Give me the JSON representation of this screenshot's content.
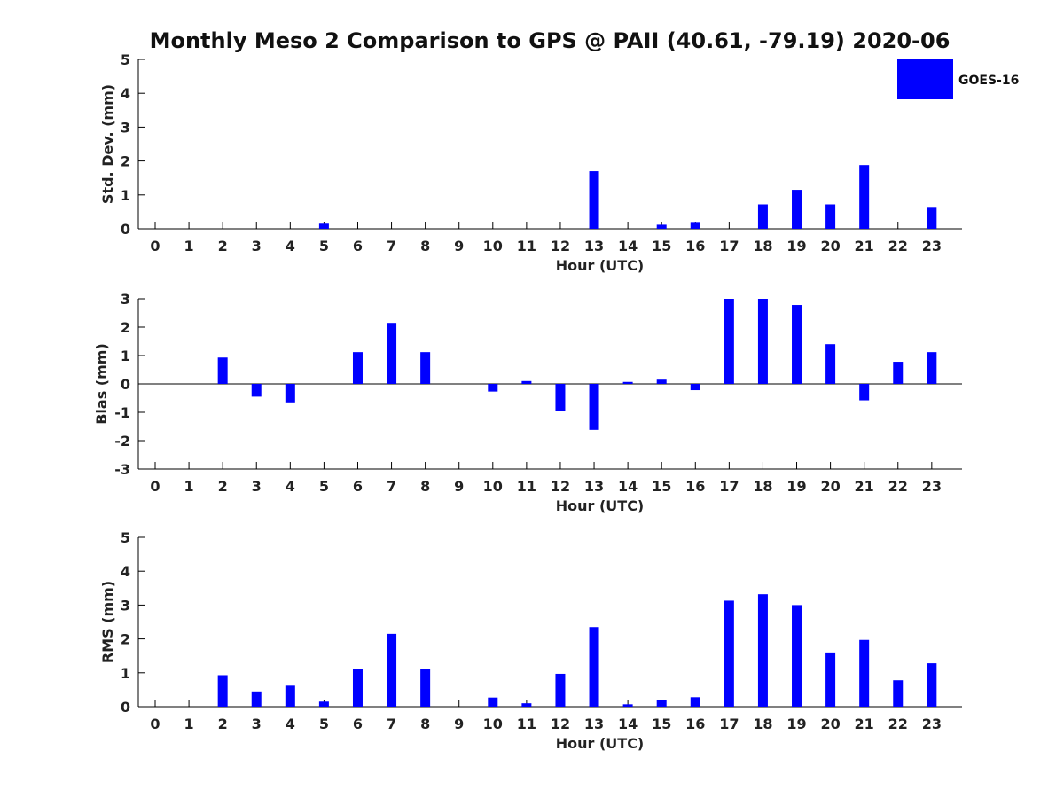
{
  "title": "Monthly Meso 2 Comparison to GPS @ PAII (40.61, -79.19) 2020-06",
  "legend": {
    "label": "GOES-16",
    "placement": "top-right"
  },
  "colors": {
    "bar": "#0000ff"
  },
  "chart_data": [
    {
      "type": "bar",
      "ylabel": "Std. Dev. (mm)",
      "xlabel": "Hour (UTC)",
      "ylim": [
        0,
        5
      ],
      "yticks": [
        0,
        1,
        2,
        3,
        4,
        5
      ],
      "categories": [
        "0",
        "1",
        "2",
        "3",
        "4",
        "5",
        "6",
        "7",
        "8",
        "9",
        "10",
        "11",
        "12",
        "13",
        "14",
        "15",
        "16",
        "17",
        "18",
        "19",
        "20",
        "21",
        "22",
        "23"
      ],
      "series": [
        {
          "name": "GOES-16",
          "values": [
            0,
            0,
            0,
            0,
            0,
            0.15,
            0,
            0,
            0,
            0,
            0,
            0,
            0,
            1.7,
            0,
            0.12,
            0.2,
            0,
            0.72,
            1.15,
            0.72,
            1.88,
            0,
            0.62
          ]
        }
      ]
    },
    {
      "type": "bar",
      "ylabel": "Bias (mm)",
      "xlabel": "Hour (UTC)",
      "ylim": [
        -3,
        3
      ],
      "yticks": [
        -3,
        -2,
        -1,
        0,
        1,
        2,
        3
      ],
      "categories": [
        "0",
        "1",
        "2",
        "3",
        "4",
        "5",
        "6",
        "7",
        "8",
        "9",
        "10",
        "11",
        "12",
        "13",
        "14",
        "15",
        "16",
        "17",
        "18",
        "19",
        "20",
        "21",
        "22",
        "23"
      ],
      "series": [
        {
          "name": "GOES-16",
          "values": [
            0,
            0,
            0.93,
            -0.45,
            -0.65,
            0,
            1.12,
            2.15,
            1.12,
            0,
            -0.27,
            0.1,
            -0.95,
            -1.62,
            0.07,
            0.15,
            -0.22,
            3.0,
            3.0,
            2.78,
            1.4,
            -0.58,
            0.78,
            1.12
          ]
        }
      ]
    },
    {
      "type": "bar",
      "ylabel": "RMS (mm)",
      "xlabel": "Hour (UTC)",
      "ylim": [
        0,
        5
      ],
      "yticks": [
        0,
        1,
        2,
        3,
        4,
        5
      ],
      "categories": [
        "0",
        "1",
        "2",
        "3",
        "4",
        "5",
        "6",
        "7",
        "8",
        "9",
        "10",
        "11",
        "12",
        "13",
        "14",
        "15",
        "16",
        "17",
        "18",
        "19",
        "20",
        "21",
        "22",
        "23"
      ],
      "series": [
        {
          "name": "GOES-16",
          "values": [
            0,
            0,
            0.93,
            0.45,
            0.62,
            0.15,
            1.12,
            2.15,
            1.12,
            0,
            0.27,
            0.1,
            0.97,
            2.35,
            0.07,
            0.2,
            0.28,
            3.13,
            3.32,
            3.0,
            1.6,
            1.97,
            0.78,
            1.28
          ]
        }
      ]
    }
  ]
}
